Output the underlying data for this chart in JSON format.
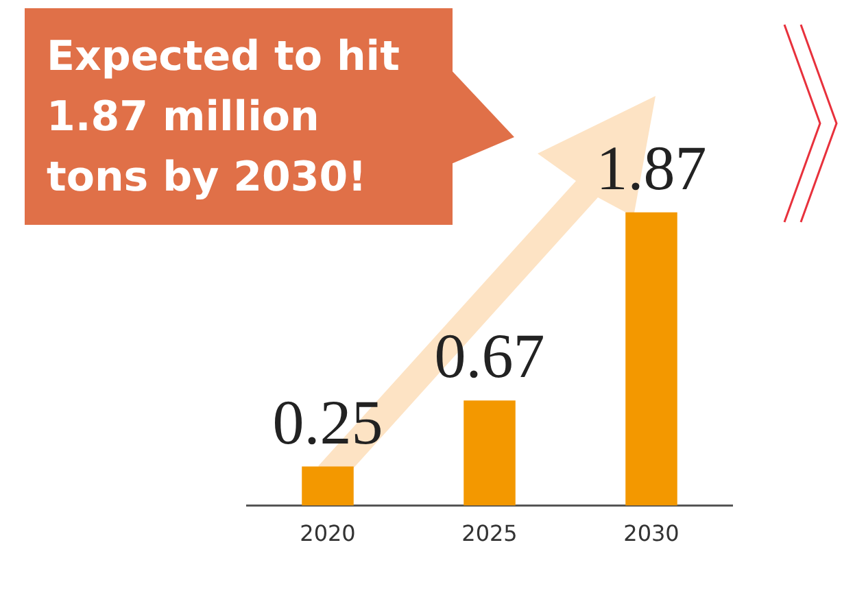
{
  "chart_data": {
    "type": "bar",
    "categories": [
      "2020",
      "2025",
      "2030"
    ],
    "values": [
      0.25,
      0.67,
      1.87
    ],
    "color": "#f39800",
    "data_labels": true,
    "grid": false,
    "legend": false,
    "tick_labels": "x",
    "annotations": [
      "Expected to hit 1.87 million tons by 2030!"
    ]
  }
}
